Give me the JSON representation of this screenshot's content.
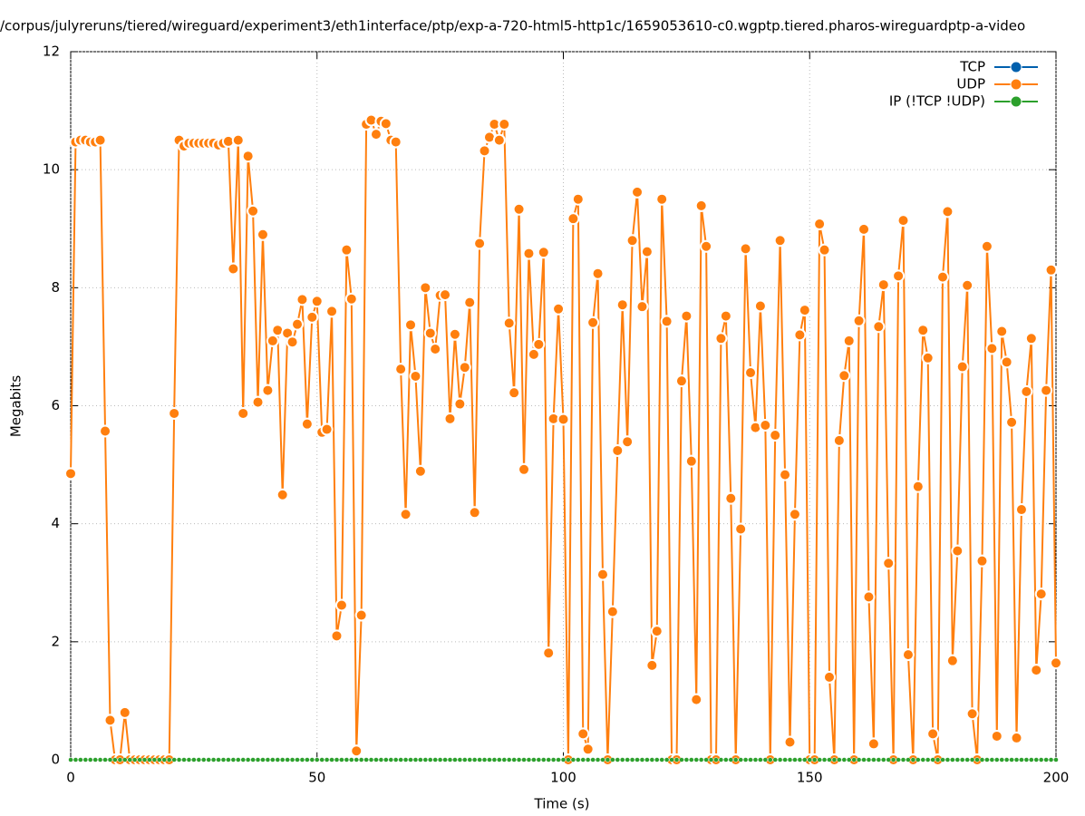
{
  "chart_data": {
    "type": "line",
    "title": "/corpus/julyreruns/tiered/wireguard/experiment3/eth1interface/ptp/exp-a-720-html5-http1c/1659053610-c0.wgptp.tiered.pharos-wireguardptp-a-video",
    "x_label": "Time (s)",
    "y_label": "Megabits",
    "xlim": [
      0,
      200
    ],
    "xticks": [
      0,
      50,
      100,
      150,
      200
    ],
    "ylim": [
      0,
      12
    ],
    "yticks": [
      0,
      2,
      4,
      6,
      8,
      10,
      12
    ],
    "grid": true,
    "legend": "top-right",
    "x": [
      0,
      1,
      2,
      3,
      4,
      5,
      6,
      7,
      8,
      9,
      10,
      11,
      12,
      13,
      14,
      15,
      16,
      17,
      18,
      19,
      20,
      21,
      22,
      23,
      24,
      25,
      26,
      27,
      28,
      29,
      30,
      31,
      32,
      33,
      34,
      35,
      36,
      37,
      38,
      39,
      40,
      41,
      42,
      43,
      44,
      45,
      46,
      47,
      48,
      49,
      50,
      51,
      52,
      53,
      54,
      55,
      56,
      57,
      58,
      59,
      60,
      61,
      62,
      63,
      64,
      65,
      66,
      67,
      68,
      69,
      70,
      71,
      72,
      73,
      74,
      75,
      76,
      77,
      78,
      79,
      80,
      81,
      82,
      83,
      84,
      85,
      86,
      87,
      88,
      89,
      90,
      91,
      92,
      93,
      94,
      95,
      96,
      97,
      98,
      99,
      100,
      101,
      102,
      103,
      104,
      105,
      106,
      107,
      108,
      109,
      110,
      111,
      112,
      113,
      114,
      115,
      116,
      117,
      118,
      119,
      120,
      121,
      122,
      123,
      124,
      125,
      126,
      127,
      128,
      129,
      130,
      131,
      132,
      133,
      134,
      135,
      136,
      137,
      138,
      139,
      140,
      141,
      142,
      143,
      144,
      145,
      146,
      147,
      148,
      149,
      150,
      151,
      152,
      153,
      154,
      155,
      156,
      157,
      158,
      159,
      160,
      161,
      162,
      163,
      164,
      165,
      166,
      167,
      168,
      169,
      170,
      171,
      172,
      173,
      174,
      175,
      176,
      177,
      178,
      179,
      180,
      181,
      182,
      183,
      184,
      185,
      186,
      187,
      188,
      189,
      190,
      191,
      192,
      193,
      194,
      195,
      196,
      197,
      198,
      199,
      200
    ],
    "series": [
      {
        "name": "TCP",
        "color": "#0060ad",
        "values": [
          0,
          0,
          0,
          0,
          0,
          0,
          0,
          0,
          0,
          0,
          0,
          0,
          0,
          0,
          0,
          0,
          0,
          0,
          0,
          0,
          0,
          0,
          0,
          0,
          0,
          0,
          0,
          0,
          0,
          0,
          0,
          0,
          0,
          0,
          0,
          0,
          0,
          0,
          0,
          0,
          0,
          0,
          0,
          0,
          0,
          0,
          0,
          0,
          0,
          0,
          0,
          0,
          0,
          0,
          0,
          0,
          0,
          0,
          0,
          0,
          0,
          0,
          0,
          0,
          0,
          0,
          0,
          0,
          0,
          0,
          0,
          0,
          0,
          0,
          0,
          0,
          0,
          0,
          0,
          0,
          0,
          0,
          0,
          0,
          0,
          0,
          0,
          0,
          0,
          0,
          0,
          0,
          0,
          0,
          0,
          0,
          0,
          0,
          0,
          0,
          0,
          0,
          0,
          0,
          0,
          0,
          0,
          0,
          0,
          0,
          0,
          0,
          0,
          0,
          0,
          0,
          0,
          0,
          0,
          0,
          0,
          0,
          0,
          0,
          0,
          0,
          0,
          0,
          0,
          0,
          0,
          0,
          0,
          0,
          0,
          0,
          0,
          0,
          0,
          0,
          0,
          0,
          0,
          0,
          0,
          0,
          0,
          0,
          0,
          0,
          0,
          0,
          0,
          0,
          0,
          0,
          0,
          0,
          0,
          0,
          0,
          0,
          0,
          0,
          0,
          0,
          0,
          0,
          0,
          0,
          0,
          0,
          0,
          0,
          0,
          0,
          0,
          0,
          0,
          0,
          0,
          0,
          0,
          0,
          0,
          0,
          0,
          0,
          0,
          0,
          0,
          0,
          0,
          0,
          0,
          0,
          0,
          0,
          0,
          0,
          0
        ]
      },
      {
        "name": "UDP",
        "color": "#ff7f0e",
        "values": [
          4.85,
          10.47,
          10.5,
          10.5,
          10.47,
          10.47,
          10.5,
          5.57,
          0.67,
          0,
          0,
          0.8,
          0,
          0,
          0,
          0,
          0,
          0,
          0,
          0,
          0,
          5.87,
          10.5,
          10.4,
          10.45,
          10.45,
          10.45,
          10.45,
          10.45,
          10.45,
          10.42,
          10.45,
          10.48,
          8.32,
          10.5,
          5.87,
          10.23,
          9.3,
          6.06,
          8.9,
          6.26,
          7.1,
          7.28,
          4.49,
          7.23,
          7.08,
          7.38,
          7.8,
          5.69,
          7.5,
          7.77,
          5.55,
          5.6,
          7.6,
          2.1,
          2.62,
          8.64,
          7.81,
          0.15,
          2.45,
          10.77,
          10.84,
          10.6,
          10.82,
          10.78,
          10.5,
          10.47,
          6.62,
          4.16,
          7.37,
          6.5,
          4.89,
          8.0,
          7.23,
          6.96,
          7.87,
          7.88,
          5.78,
          7.21,
          6.03,
          6.65,
          7.75,
          4.19,
          8.75,
          10.32,
          10.55,
          10.77,
          10.5,
          10.77,
          7.4,
          6.22,
          9.33,
          4.92,
          8.58,
          6.87,
          7.04,
          8.6,
          1.81,
          5.78,
          7.64,
          5.77,
          0,
          9.17,
          9.5,
          0.44,
          0.18,
          7.41,
          8.24,
          3.14,
          0,
          2.51,
          5.24,
          7.71,
          5.39,
          8.8,
          9.62,
          7.68,
          8.61,
          1.6,
          2.18,
          9.5,
          7.43,
          0,
          0,
          6.42,
          7.52,
          5.06,
          1.02,
          9.39,
          8.7,
          0,
          0,
          7.14,
          7.52,
          4.43,
          0,
          3.91,
          8.66,
          6.56,
          5.63,
          7.69,
          5.67,
          0,
          5.5,
          8.8,
          4.83,
          0.3,
          4.16,
          7.2,
          7.62,
          0,
          0,
          9.08,
          8.64,
          1.4,
          0,
          5.41,
          6.51,
          7.1,
          0,
          7.44,
          8.99,
          2.76,
          0.27,
          7.34,
          8.05,
          3.33,
          0,
          8.2,
          9.14,
          1.78,
          0,
          4.63,
          7.28,
          6.81,
          0.44,
          0,
          8.18,
          9.29,
          1.68,
          3.54,
          6.66,
          8.04,
          0.78,
          0,
          3.37,
          8.7,
          6.97,
          0.4,
          7.26,
          6.74,
          5.72,
          0.37,
          4.24,
          6.24,
          7.14,
          1.52,
          2.81,
          6.26,
          8.3,
          1.64
        ]
      },
      {
        "name": "IP (!TCP  !UDP)",
        "color": "#2ca02c",
        "values": [
          0,
          0,
          0,
          0,
          0,
          0,
          0,
          0,
          0,
          0,
          0,
          0,
          0,
          0,
          0,
          0,
          0,
          0,
          0,
          0,
          0,
          0,
          0,
          0,
          0,
          0,
          0,
          0,
          0,
          0,
          0,
          0,
          0,
          0,
          0,
          0,
          0,
          0,
          0,
          0,
          0,
          0,
          0,
          0,
          0,
          0,
          0,
          0,
          0,
          0,
          0,
          0,
          0,
          0,
          0,
          0,
          0,
          0,
          0,
          0,
          0,
          0,
          0,
          0,
          0,
          0,
          0,
          0,
          0,
          0,
          0,
          0,
          0,
          0,
          0,
          0,
          0,
          0,
          0,
          0,
          0,
          0,
          0,
          0,
          0,
          0,
          0,
          0,
          0,
          0,
          0,
          0,
          0,
          0,
          0,
          0,
          0,
          0,
          0,
          0,
          0,
          0,
          0,
          0,
          0,
          0,
          0,
          0,
          0,
          0,
          0,
          0,
          0,
          0,
          0,
          0,
          0,
          0,
          0,
          0,
          0,
          0,
          0,
          0,
          0,
          0,
          0,
          0,
          0,
          0,
          0,
          0,
          0,
          0,
          0,
          0,
          0,
          0,
          0,
          0,
          0,
          0,
          0,
          0,
          0,
          0,
          0,
          0,
          0,
          0,
          0,
          0,
          0,
          0,
          0,
          0,
          0,
          0,
          0,
          0,
          0,
          0,
          0,
          0,
          0,
          0,
          0,
          0,
          0,
          0,
          0,
          0,
          0,
          0,
          0,
          0,
          0,
          0,
          0,
          0,
          0,
          0,
          0,
          0,
          0,
          0,
          0,
          0,
          0,
          0,
          0,
          0,
          0,
          0,
          0,
          0,
          0,
          0,
          0,
          0,
          0
        ]
      }
    ]
  }
}
